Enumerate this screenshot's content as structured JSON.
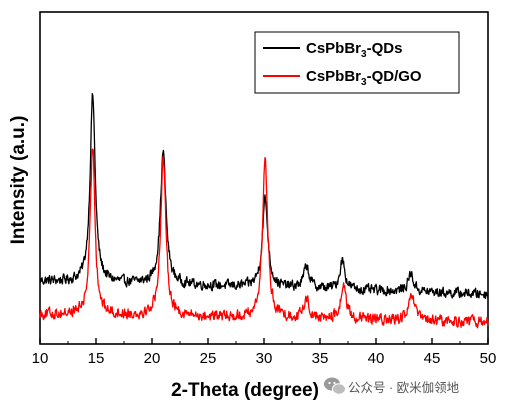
{
  "chart_data": {
    "type": "line",
    "xlabel": "2-Theta (degree)",
    "ylabel": "Intensity (a.u.)",
    "xlim": [
      10,
      50
    ],
    "xticks": [
      10,
      15,
      20,
      25,
      30,
      35,
      40,
      45,
      50
    ],
    "y_ticks_visible": false,
    "grid": false,
    "legend": {
      "placement": "top-right",
      "entries": [
        {
          "prefix": "CsPbBr",
          "subscript": "3",
          "suffix": "-QDs",
          "color": "#000000"
        },
        {
          "prefix": "CsPbBr",
          "subscript": "3",
          "suffix": "-QD/GO",
          "color": "#ff0000"
        }
      ]
    },
    "series": [
      {
        "name": "CsPbBr3-QDs",
        "color": "#000000",
        "baseline_intensity": 0.63,
        "end_intensity": 0.5,
        "noise": 0.045,
        "peaks": [
          {
            "x": 14.7,
            "intensity": 1.87,
            "width": 0.55
          },
          {
            "x": 21.0,
            "intensity": 1.33,
            "width": 0.6
          },
          {
            "x": 30.1,
            "intensity": 0.88,
            "width": 0.6
          },
          {
            "x": 33.8,
            "intensity": 0.22,
            "width": 0.6
          },
          {
            "x": 37.0,
            "intensity": 0.3,
            "width": 0.55
          },
          {
            "x": 43.1,
            "intensity": 0.18,
            "width": 0.6
          }
        ]
      },
      {
        "name": "CsPbBr3-QD/GO",
        "color": "#ff0000",
        "baseline_intensity": 0.3,
        "end_intensity": 0.22,
        "noise": 0.05,
        "peaks": [
          {
            "x": 14.7,
            "intensity": 1.7,
            "width": 0.5
          },
          {
            "x": 21.0,
            "intensity": 1.6,
            "width": 0.55
          },
          {
            "x": 30.1,
            "intensity": 1.58,
            "width": 0.55
          },
          {
            "x": 33.8,
            "intensity": 0.2,
            "width": 0.55
          },
          {
            "x": 37.1,
            "intensity": 0.35,
            "width": 0.55
          },
          {
            "x": 43.2,
            "intensity": 0.25,
            "width": 0.6
          }
        ]
      }
    ]
  },
  "watermark": {
    "icon": "wechat-icon",
    "text": "公众号 · 欧米伽领地"
  }
}
